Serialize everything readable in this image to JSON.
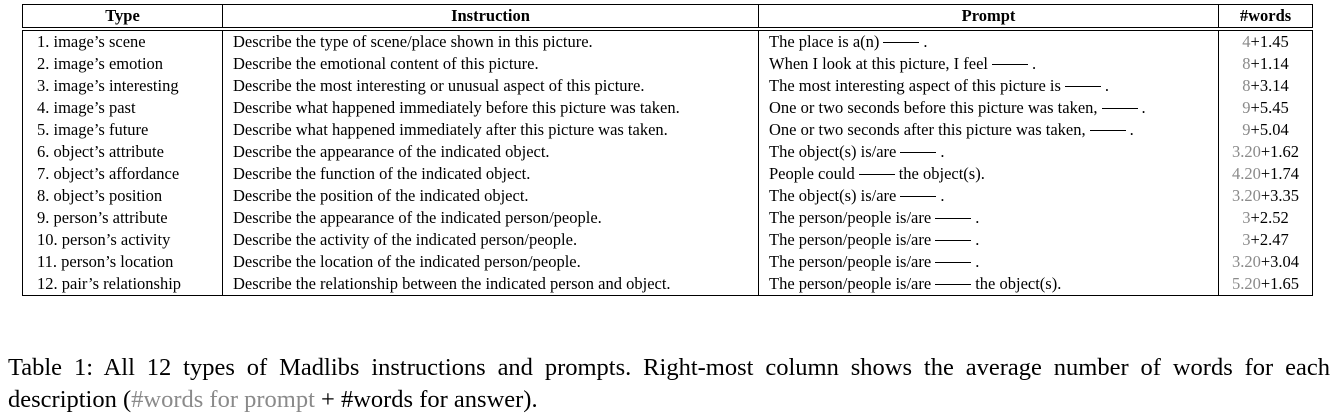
{
  "table": {
    "headers": [
      "Type",
      "Instruction",
      "Prompt",
      "#words"
    ],
    "rows": [
      {
        "type": "1. image’s scene",
        "instruction": "Describe the type of scene/place shown in this picture.",
        "prompt_before": "The place is a(n)",
        "prompt_after": ".",
        "words_prompt": "4",
        "words_answer": "+1.45"
      },
      {
        "type": "2. image’s emotion",
        "instruction": "Describe the emotional content of this picture.",
        "prompt_before": "When I look at this picture, I feel",
        "prompt_after": ".",
        "words_prompt": "8",
        "words_answer": "+1.14"
      },
      {
        "type": "3. image’s interesting",
        "instruction": "Describe the most interesting or unusual aspect of this picture.",
        "prompt_before": "The most interesting aspect of this picture is",
        "prompt_after": ".",
        "words_prompt": "8",
        "words_answer": "+3.14"
      },
      {
        "type": "4. image’s past",
        "instruction": "Describe what happened immediately before this picture was taken.",
        "prompt_before": "One or two seconds before this picture was taken,",
        "prompt_after": ".",
        "words_prompt": "9",
        "words_answer": "+5.45"
      },
      {
        "type": "5. image’s future",
        "instruction": "Describe what happened immediately after this picture was taken.",
        "prompt_before": "One or two seconds after this picture was taken,",
        "prompt_after": ".",
        "words_prompt": "9",
        "words_answer": "+5.04"
      },
      {
        "type": "6. object’s attribute",
        "instruction": "Describe the appearance of the indicated object.",
        "prompt_before": "The object(s) is/are",
        "prompt_after": ".",
        "words_prompt": "3.20",
        "words_answer": "+1.62"
      },
      {
        "type": "7. object’s affordance",
        "instruction": "Describe the function of the indicated object.",
        "prompt_before": "People could",
        "prompt_after": "the object(s).",
        "words_prompt": "4.20",
        "words_answer": "+1.74"
      },
      {
        "type": "8. object’s position",
        "instruction": "Describe the position of the indicated object.",
        "prompt_before": "The object(s) is/are",
        "prompt_after": ".",
        "words_prompt": "3.20",
        "words_answer": "+3.35"
      },
      {
        "type": "9. person’s attribute",
        "instruction": "Describe the appearance of the indicated person/people.",
        "prompt_before": "The person/people is/are",
        "prompt_after": ".",
        "words_prompt": "3",
        "words_answer": "+2.52"
      },
      {
        "type": "10. person’s activity",
        "instruction": "Describe the activity of the indicated person/people.",
        "prompt_before": "The person/people is/are",
        "prompt_after": ".",
        "words_prompt": "3",
        "words_answer": "+2.47"
      },
      {
        "type": "11. person’s location",
        "instruction": "Describe the location of the indicated person/people.",
        "prompt_before": "The person/people is/are",
        "prompt_after": ".",
        "words_prompt": "3.20",
        "words_answer": "+3.04"
      },
      {
        "type": "12. pair’s relationship",
        "instruction": "Describe the relationship between the indicated person and object.",
        "prompt_before": "The person/people is/are",
        "prompt_after": "the object(s).",
        "words_prompt": "5.20",
        "words_answer": "+1.65"
      }
    ]
  },
  "caption": {
    "main": "Table 1: All 12 types of Madlibs instructions and prompts. Right-most column shows the average number of words for each description (",
    "gray": "#words for prompt",
    "tail": " + #words for answer)."
  },
  "colors": {
    "gray": "#8a8a8a",
    "text": "#000000"
  }
}
